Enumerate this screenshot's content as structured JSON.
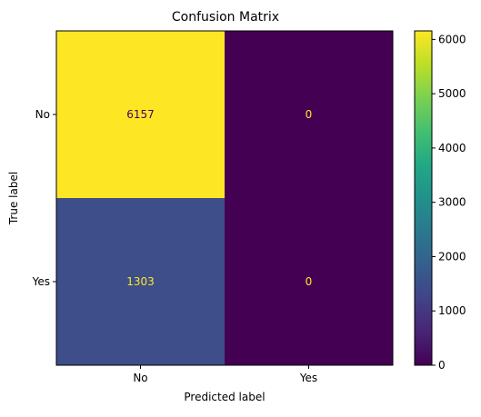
{
  "chart_data": {
    "type": "heatmap",
    "title": "Confusion Matrix",
    "xlabel": "Predicted label",
    "ylabel": "True label",
    "x_categories": [
      "No",
      "Yes"
    ],
    "y_categories": [
      "No",
      "Yes"
    ],
    "values": [
      [
        6157,
        0
      ],
      [
        1303,
        0
      ]
    ],
    "colormap": "viridis",
    "colorbar": {
      "min": 0,
      "max": 6157,
      "ticks": [
        0,
        1000,
        2000,
        3000,
        4000,
        5000,
        6000
      ]
    },
    "cell_colors": [
      [
        "#fde725",
        "#440154"
      ],
      [
        "#3d4e8a",
        "#440154"
      ]
    ],
    "cell_text_colors": [
      [
        "#440154",
        "#fde725"
      ],
      [
        "#fde725",
        "#fde725"
      ]
    ]
  }
}
